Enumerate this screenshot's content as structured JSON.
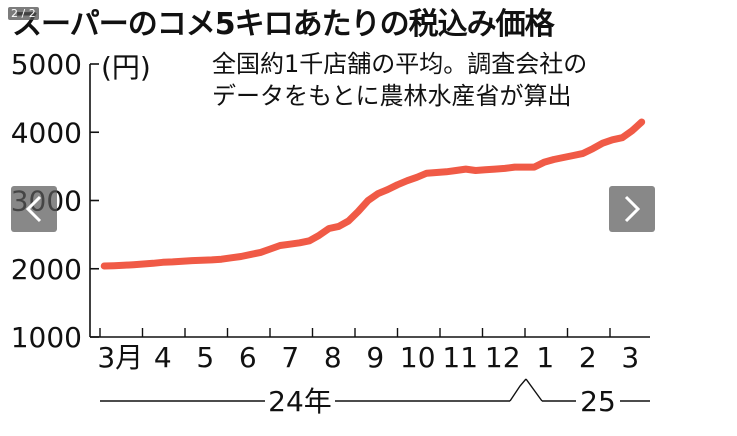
{
  "viewer": {
    "counter": "2 / 2",
    "prev_icon": "chevron-left-icon",
    "next_icon": "chevron-right-icon"
  },
  "chart_data": {
    "type": "line",
    "title": "スーパーのコメ5キロあたりの税込み価格",
    "unit": "(円)",
    "note_lines": [
      "全国約1千店舗の平均。調査会社の",
      "データをもとに農林水産省が算出"
    ],
    "ylim": [
      1000,
      5000
    ],
    "yticks": [
      "1000",
      "2000",
      "3000",
      "4000",
      "5000"
    ],
    "xticks": [
      "3月",
      "4",
      "5",
      "6",
      "7",
      "8",
      "9",
      "10",
      "11",
      "12",
      "1",
      "2",
      "3"
    ],
    "year_labels": [
      "24年",
      "25"
    ],
    "series_color": "#f05a46",
    "grid": false,
    "series": [
      {
        "x": [
          "2024-03-04",
          "2024-03-11",
          "2024-03-18",
          "2024-03-25",
          "2024-04-01",
          "2024-04-08",
          "2024-04-15",
          "2024-04-22",
          "2024-04-29",
          "2024-05-06",
          "2024-05-13",
          "2024-05-20",
          "2024-05-27",
          "2024-06-03",
          "2024-06-10",
          "2024-06-17",
          "2024-06-24",
          "2024-07-01",
          "2024-07-08",
          "2024-07-15",
          "2024-07-22",
          "2024-07-29",
          "2024-08-05",
          "2024-08-12",
          "2024-08-19",
          "2024-08-26",
          "2024-09-02",
          "2024-09-09",
          "2024-09-16",
          "2024-09-23",
          "2024-09-30",
          "2024-10-07",
          "2024-10-14",
          "2024-10-21",
          "2024-10-28",
          "2024-11-04",
          "2024-11-11",
          "2024-11-18",
          "2024-11-25",
          "2024-12-02",
          "2024-12-09",
          "2024-12-16",
          "2024-12-23",
          "2024-12-30",
          "2025-01-06",
          "2025-01-13",
          "2025-01-20",
          "2025-01-27",
          "2025-02-03",
          "2025-02-10",
          "2025-02-17",
          "2025-02-24",
          "2025-03-03",
          "2025-03-10",
          "2025-03-17",
          "2025-03-24"
        ],
        "values": [
          2040,
          2045,
          2050,
          2060,
          2070,
          2080,
          2095,
          2100,
          2110,
          2120,
          2125,
          2130,
          2140,
          2160,
          2180,
          2210,
          2240,
          2290,
          2340,
          2360,
          2380,
          2410,
          2490,
          2590,
          2620,
          2700,
          2840,
          3000,
          3100,
          3160,
          3230,
          3290,
          3340,
          3400,
          3410,
          3420,
          3440,
          3460,
          3440,
          3450,
          3460,
          3470,
          3490,
          3490,
          3490,
          3560,
          3600,
          3630,
          3660,
          3690,
          3760,
          3840,
          3890,
          3920,
          4020,
          4150
        ]
      }
    ]
  }
}
